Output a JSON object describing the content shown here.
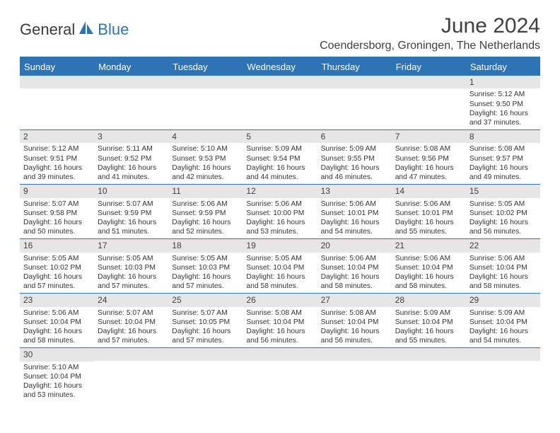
{
  "logo": {
    "text1": "General",
    "text2": "Blue"
  },
  "title": "June 2024",
  "location": "Coendersborg, Groningen, The Netherlands",
  "colors": {
    "header_bg": "#2e74b5",
    "header_text": "#ffffff",
    "daynum_bg": "#e6e6e6",
    "border": "#2e74b5",
    "text": "#333333",
    "title_text": "#404040"
  },
  "typography": {
    "title_fontsize": 30,
    "location_fontsize": 16,
    "weekday_fontsize": 13,
    "daynum_fontsize": 12,
    "body_fontsize": 10.3
  },
  "weekdays": [
    "Sunday",
    "Monday",
    "Tuesday",
    "Wednesday",
    "Thursday",
    "Friday",
    "Saturday"
  ],
  "weeks": [
    [
      null,
      null,
      null,
      null,
      null,
      null,
      {
        "n": "1",
        "sr": "5:12 AM",
        "ss": "9:50 PM",
        "dh": "16",
        "dm": "37"
      }
    ],
    [
      {
        "n": "2",
        "sr": "5:12 AM",
        "ss": "9:51 PM",
        "dh": "16",
        "dm": "39"
      },
      {
        "n": "3",
        "sr": "5:11 AM",
        "ss": "9:52 PM",
        "dh": "16",
        "dm": "41"
      },
      {
        "n": "4",
        "sr": "5:10 AM",
        "ss": "9:53 PM",
        "dh": "16",
        "dm": "42"
      },
      {
        "n": "5",
        "sr": "5:09 AM",
        "ss": "9:54 PM",
        "dh": "16",
        "dm": "44"
      },
      {
        "n": "6",
        "sr": "5:09 AM",
        "ss": "9:55 PM",
        "dh": "16",
        "dm": "46"
      },
      {
        "n": "7",
        "sr": "5:08 AM",
        "ss": "9:56 PM",
        "dh": "16",
        "dm": "47"
      },
      {
        "n": "8",
        "sr": "5:08 AM",
        "ss": "9:57 PM",
        "dh": "16",
        "dm": "49"
      }
    ],
    [
      {
        "n": "9",
        "sr": "5:07 AM",
        "ss": "9:58 PM",
        "dh": "16",
        "dm": "50"
      },
      {
        "n": "10",
        "sr": "5:07 AM",
        "ss": "9:59 PM",
        "dh": "16",
        "dm": "51"
      },
      {
        "n": "11",
        "sr": "5:06 AM",
        "ss": "9:59 PM",
        "dh": "16",
        "dm": "52"
      },
      {
        "n": "12",
        "sr": "5:06 AM",
        "ss": "10:00 PM",
        "dh": "16",
        "dm": "53"
      },
      {
        "n": "13",
        "sr": "5:06 AM",
        "ss": "10:01 PM",
        "dh": "16",
        "dm": "54"
      },
      {
        "n": "14",
        "sr": "5:06 AM",
        "ss": "10:01 PM",
        "dh": "16",
        "dm": "55"
      },
      {
        "n": "15",
        "sr": "5:05 AM",
        "ss": "10:02 PM",
        "dh": "16",
        "dm": "56"
      }
    ],
    [
      {
        "n": "16",
        "sr": "5:05 AM",
        "ss": "10:02 PM",
        "dh": "16",
        "dm": "57"
      },
      {
        "n": "17",
        "sr": "5:05 AM",
        "ss": "10:03 PM",
        "dh": "16",
        "dm": "57"
      },
      {
        "n": "18",
        "sr": "5:05 AM",
        "ss": "10:03 PM",
        "dh": "16",
        "dm": "57"
      },
      {
        "n": "19",
        "sr": "5:05 AM",
        "ss": "10:04 PM",
        "dh": "16",
        "dm": "58"
      },
      {
        "n": "20",
        "sr": "5:06 AM",
        "ss": "10:04 PM",
        "dh": "16",
        "dm": "58"
      },
      {
        "n": "21",
        "sr": "5:06 AM",
        "ss": "10:04 PM",
        "dh": "16",
        "dm": "58"
      },
      {
        "n": "22",
        "sr": "5:06 AM",
        "ss": "10:04 PM",
        "dh": "16",
        "dm": "58"
      }
    ],
    [
      {
        "n": "23",
        "sr": "5:06 AM",
        "ss": "10:04 PM",
        "dh": "16",
        "dm": "58"
      },
      {
        "n": "24",
        "sr": "5:07 AM",
        "ss": "10:04 PM",
        "dh": "16",
        "dm": "57"
      },
      {
        "n": "25",
        "sr": "5:07 AM",
        "ss": "10:05 PM",
        "dh": "16",
        "dm": "57"
      },
      {
        "n": "26",
        "sr": "5:08 AM",
        "ss": "10:04 PM",
        "dh": "16",
        "dm": "56"
      },
      {
        "n": "27",
        "sr": "5:08 AM",
        "ss": "10:04 PM",
        "dh": "16",
        "dm": "56"
      },
      {
        "n": "28",
        "sr": "5:09 AM",
        "ss": "10:04 PM",
        "dh": "16",
        "dm": "55"
      },
      {
        "n": "29",
        "sr": "5:09 AM",
        "ss": "10:04 PM",
        "dh": "16",
        "dm": "54"
      }
    ],
    [
      {
        "n": "30",
        "sr": "5:10 AM",
        "ss": "10:04 PM",
        "dh": "16",
        "dm": "53"
      },
      null,
      null,
      null,
      null,
      null,
      null
    ]
  ],
  "labels": {
    "sunrise": "Sunrise:",
    "sunset": "Sunset:",
    "daylight": "Daylight:",
    "hours": "hours",
    "and": "and",
    "minutes": "minutes."
  }
}
